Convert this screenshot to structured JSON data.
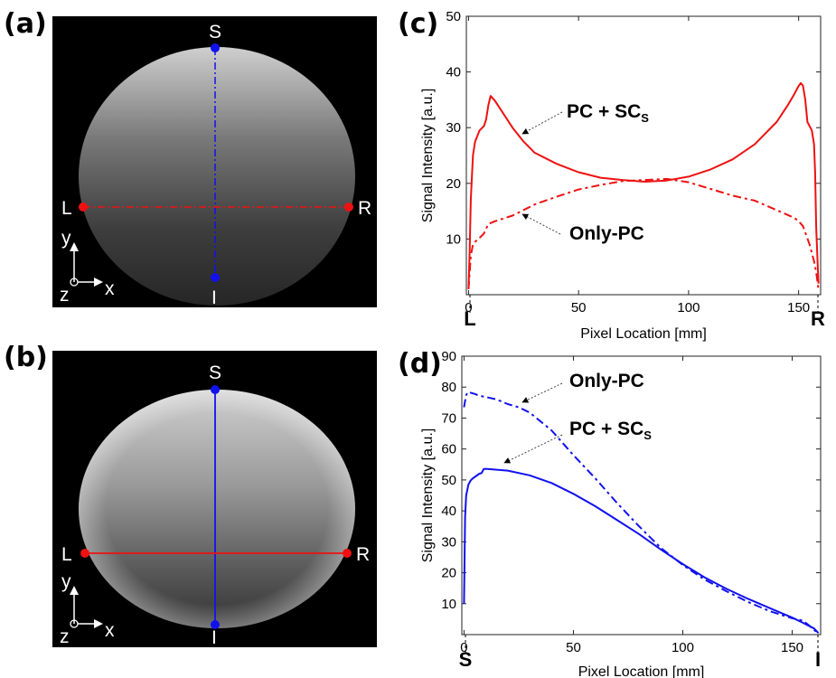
{
  "panels": {
    "a": {
      "label": "(a)",
      "sup": "S",
      "inf": "I",
      "left": "L",
      "right": "R",
      "axis_y": "y",
      "axis_x": "x",
      "axis_z": "z"
    },
    "b": {
      "label": "(b)",
      "sup": "S",
      "inf": "I",
      "left": "L",
      "right": "R",
      "axis_y": "y",
      "axis_x": "x",
      "axis_z": "z"
    }
  },
  "colors": {
    "red": "#ee1111",
    "blue": "#1111ee",
    "mri_bg": "#000000"
  },
  "chart_data": [
    {
      "panel": "(c)",
      "type": "line",
      "xlabel": "Pixel Location [mm]",
      "ylabel": "Signal Intensity [a.u.]",
      "xlim": [
        -1,
        160
      ],
      "ylim": [
        0,
        50
      ],
      "xticks": [
        0,
        50,
        100,
        150
      ],
      "yticks": [
        10,
        20,
        30,
        40,
        50
      ],
      "end_labels": {
        "start": "L",
        "end": "R"
      },
      "series": [
        {
          "name": "PC + SCS",
          "label_main": "PC + SC",
          "label_sub": "S",
          "style": "solid",
          "color": "#ee1111",
          "x": [
            0,
            0.5,
            1,
            2,
            3,
            5,
            7,
            8,
            9,
            10,
            12,
            15,
            20,
            25,
            30,
            40,
            50,
            60,
            70,
            80,
            90,
            100,
            110,
            120,
            130,
            140,
            145,
            148,
            150,
            151,
            152,
            153,
            154,
            156,
            157,
            157.5,
            158,
            159
          ],
          "y": [
            1,
            8,
            17,
            25,
            27.5,
            29.5,
            30.3,
            31.5,
            34,
            35.7,
            34.8,
            33,
            30,
            27.5,
            25.5,
            23.5,
            22,
            21,
            20.6,
            20.3,
            20.5,
            21.2,
            22.5,
            24.3,
            27,
            31,
            34,
            36,
            37.5,
            38,
            37.5,
            35,
            31,
            29.5,
            27,
            22,
            12,
            2
          ]
        },
        {
          "name": "Only-PC",
          "label_main": "Only-PC",
          "label_sub": "",
          "style": "dashdot",
          "color": "#ee1111",
          "x": [
            0,
            0.5,
            1,
            2,
            3,
            5,
            7,
            9,
            12,
            20,
            30,
            40,
            50,
            60,
            70,
            80,
            90,
            100,
            110,
            120,
            130,
            140,
            148,
            150,
            152,
            155,
            157,
            158,
            159
          ],
          "y": [
            1,
            4,
            7,
            9,
            9.5,
            10.2,
            11,
            12.7,
            13.2,
            14.2,
            16.2,
            17.6,
            18.9,
            19.7,
            20.4,
            20.6,
            20.8,
            20.2,
            19,
            17.8,
            16.9,
            15.2,
            13.8,
            13.2,
            12.3,
            9,
            6,
            4,
            1
          ]
        }
      ]
    },
    {
      "panel": "(d)",
      "type": "line",
      "xlabel": "Pixel Location [mm]",
      "ylabel": "Signal Intensity [a.u.]",
      "xlim": [
        -1,
        163
      ],
      "ylim": [
        0,
        90
      ],
      "xticks": [
        0,
        50,
        100,
        150
      ],
      "yticks": [
        10,
        20,
        30,
        40,
        50,
        60,
        70,
        80,
        90
      ],
      "end_labels": {
        "start": "S",
        "end": "I"
      },
      "series": [
        {
          "name": "Only-PC",
          "label_main": "Only-PC",
          "label_sub": "",
          "style": "dashdot",
          "color": "#1111ee",
          "x": [
            0,
            1,
            2,
            3,
            5,
            7,
            10,
            15,
            20,
            25,
            30,
            40,
            50,
            60,
            70,
            80,
            90,
            100,
            110,
            120,
            130,
            140,
            150,
            155,
            158,
            160,
            162
          ],
          "y": [
            73.5,
            77.5,
            78.5,
            78.2,
            77.8,
            77.2,
            76.8,
            76,
            74.5,
            73.5,
            71.8,
            66,
            58,
            50.5,
            42.5,
            35,
            28,
            22.5,
            17.8,
            14,
            10.5,
            7.5,
            5.3,
            4.5,
            2.8,
            1.5,
            0.5
          ]
        },
        {
          "name": "PC + SCS",
          "label_main": "PC + SC",
          "label_sub": "S",
          "style": "solid",
          "color": "#1111ee",
          "x": [
            0,
            0.5,
            1,
            2,
            3,
            4,
            5,
            7,
            8,
            9,
            10,
            20,
            30,
            40,
            50,
            60,
            70,
            80,
            90,
            100,
            110,
            120,
            130,
            140,
            150,
            155,
            160,
            162
          ],
          "y": [
            10,
            38,
            45,
            48.5,
            49.8,
            50.5,
            51,
            52,
            52.2,
            53.5,
            53.6,
            53,
            51.5,
            49,
            45.5,
            41.5,
            37,
            32.5,
            27.5,
            22.8,
            18.5,
            14.8,
            11.5,
            8.5,
            5.5,
            3.8,
            2,
            0.5
          ]
        }
      ]
    }
  ]
}
